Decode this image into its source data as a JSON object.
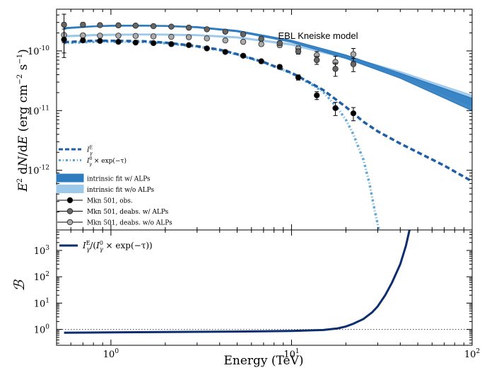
{
  "chart_data": [
    {
      "type": "scatter",
      "annotation": "EBL Kneiske model",
      "ylabel": "E^2 dN/dE (erg cm^-2 s^-1)",
      "xscale": "log",
      "yscale": "log",
      "xlim": [
        0.5,
        100
      ],
      "ylim": [
        1e-13,
        5e-10
      ],
      "y_tick_labels": [
        "10^{-12}",
        "10^{-11}",
        "10^{-10}"
      ],
      "legend_position": "lower-left",
      "legend": [
        {
          "label": "I_γ^E",
          "style": "dashed",
          "color": "#1f5fa6"
        },
        {
          "label": "I_γ^0 × exp(−τ)",
          "style": "dashdot",
          "color": "#5ba7d9"
        },
        {
          "label": "intrinsic fit w/ ALPs",
          "style": "band",
          "color": "#2e7cc0"
        },
        {
          "label": "intrinsic fit w/o ALPs",
          "style": "band",
          "color": "#9cc8ea"
        },
        {
          "label": "Mkn 501, obs.",
          "style": "marker",
          "color": "#000000"
        },
        {
          "label": "Mkn 501, deabs. w/ ALPs",
          "style": "marker",
          "color": "#666666"
        },
        {
          "label": "Mkn 501, deabs. w/o ALPs",
          "style": "marker",
          "color": "#aaaaaa"
        }
      ],
      "series": [
        {
          "name": "Mkn 501, obs.",
          "color": "#000000",
          "x": [
            0.55,
            0.7,
            0.87,
            1.1,
            1.37,
            1.72,
            2.16,
            2.7,
            3.4,
            4.3,
            5.4,
            6.8,
            8.6,
            10.9,
            13.8,
            17.5,
            22.0
          ],
          "y": [
            1.55e-10,
            1.5e-10,
            1.47e-10,
            1.42e-10,
            1.38e-10,
            1.35e-10,
            1.3e-10,
            1.25e-10,
            1.1e-10,
            9.6e-11,
            8.3e-11,
            6.7e-11,
            5.4e-11,
            3.6e-11,
            1.8e-11,
            1.1e-11,
            9e-12
          ],
          "yerr_rel": [
            0.5,
            0.08,
            0.05,
            0.05,
            0.05,
            0.05,
            0.05,
            0.05,
            0.05,
            0.06,
            0.06,
            0.07,
            0.08,
            0.1,
            0.15,
            0.25,
            0.25
          ]
        },
        {
          "name": "Mkn 501, deabs. w/ ALPs",
          "color": "#666666",
          "x": [
            0.55,
            0.7,
            0.87,
            1.1,
            1.37,
            1.72,
            2.16,
            2.7,
            3.4,
            4.3,
            5.4,
            6.8,
            8.6,
            10.9,
            13.8,
            17.5,
            22.0
          ],
          "y": [
            2.75e-10,
            2.75e-10,
            2.7e-10,
            2.68e-10,
            2.65e-10,
            2.6e-10,
            2.55e-10,
            2.45e-10,
            2.3e-10,
            2.1e-10,
            1.9e-10,
            1.6e-10,
            1.35e-10,
            9.8e-11,
            7e-11,
            5e-11,
            6e-11
          ],
          "yerr_rel": [
            0.5,
            0.08,
            0.05,
            0.05,
            0.05,
            0.05,
            0.05,
            0.05,
            0.05,
            0.06,
            0.06,
            0.07,
            0.08,
            0.1,
            0.15,
            0.25,
            0.25
          ]
        },
        {
          "name": "Mkn 501, deabs. w/o ALPs",
          "color": "#aaaaaa",
          "x": [
            0.55,
            0.7,
            0.87,
            1.1,
            1.37,
            1.72,
            2.16,
            2.7,
            3.4,
            4.3,
            5.4,
            6.8,
            8.6,
            10.9,
            13.8,
            17.5,
            22.0
          ],
          "y": [
            1.85e-10,
            1.82e-10,
            1.8e-10,
            1.8e-10,
            1.78e-10,
            1.75e-10,
            1.72e-10,
            1.7e-10,
            1.62e-10,
            1.5e-10,
            1.42e-10,
            1.3e-10,
            1.25e-10,
            1.1e-10,
            8.5e-11,
            6.5e-11,
            8.8e-11
          ],
          "yerr_rel": [
            0.5,
            0.08,
            0.05,
            0.05,
            0.05,
            0.05,
            0.05,
            0.05,
            0.05,
            0.06,
            0.06,
            0.07,
            0.08,
            0.1,
            0.15,
            0.25,
            0.25
          ]
        },
        {
          "name": "intrinsic fit w/ ALPs",
          "color": "#2e7cc0",
          "x": [
            0.55,
            0.8,
            1.0,
            1.5,
            2.0,
            3.0,
            5.0,
            10.0,
            20.0,
            40.0,
            100.0
          ],
          "y_low": [
            2.35e-10,
            2.55e-10,
            2.6e-10,
            2.62e-10,
            2.58e-10,
            2.45e-10,
            2.1e-10,
            1.4e-10,
            7.5e-11,
            3.5e-11,
            1e-11
          ],
          "y_high": [
            2.45e-10,
            2.62e-10,
            2.68e-10,
            2.7e-10,
            2.66e-10,
            2.55e-10,
            2.2e-10,
            1.5e-10,
            8.5e-11,
            4.2e-11,
            1.6e-11
          ]
        },
        {
          "name": "intrinsic fit w/o ALPs",
          "color": "#9cc8ea",
          "x": [
            0.55,
            0.8,
            1.0,
            1.5,
            2.0,
            3.0,
            5.0,
            10.0,
            20.0,
            40.0,
            100.0
          ],
          "y_low": [
            1.72e-10,
            1.8e-10,
            1.82e-10,
            1.85e-10,
            1.84e-10,
            1.8e-10,
            1.65e-10,
            1.25e-10,
            7.5e-11,
            3.8e-11,
            1.2e-11
          ],
          "y_high": [
            1.8e-10,
            1.88e-10,
            1.9e-10,
            1.92e-10,
            1.91e-10,
            1.87e-10,
            1.72e-10,
            1.32e-10,
            8.2e-11,
            4.5e-11,
            1.8e-11
          ]
        },
        {
          "name": "I_γ^E",
          "color": "#1f5fa6",
          "x": [
            0.55,
            0.8,
            1.0,
            1.5,
            2.0,
            3.0,
            4.0,
            5.0,
            7.0,
            10.0,
            13.0,
            15.0,
            20.0,
            25.0,
            30.0,
            40.0,
            50.0,
            70.0,
            100.0
          ],
          "y": [
            1.4e-10,
            1.48e-10,
            1.48e-10,
            1.45e-10,
            1.38e-10,
            1.2e-10,
            1.05e-10,
            8.8e-11,
            6.5e-11,
            4.3e-11,
            2.8e-11,
            2.2e-11,
            1.15e-11,
            6.5e-12,
            4.5e-12,
            2.8e-12,
            2e-12,
            1.2e-12,
            6.5e-13
          ]
        },
        {
          "name": "I_γ^0 × exp(−τ)",
          "color": "#5ba7d9",
          "x": [
            0.55,
            0.8,
            1.0,
            1.5,
            2.0,
            3.0,
            4.0,
            5.0,
            7.0,
            10.0,
            13.0,
            15.0,
            18.0,
            20.0,
            22.0,
            25.0,
            27.0,
            29.0,
            30.5
          ],
          "y": [
            1.35e-10,
            1.42e-10,
            1.43e-10,
            1.41e-10,
            1.35e-10,
            1.18e-10,
            1.03e-10,
            8.7e-11,
            6.4e-11,
            4.2e-11,
            2.7e-11,
            2.05e-11,
            1.1e-11,
            7e-12,
            4e-12,
            1.5e-12,
            6e-13,
            2e-13,
            1e-13
          ]
        }
      ]
    },
    {
      "type": "line",
      "xlabel": "Energy (TeV)",
      "ylabel": "ℬ",
      "xscale": "log",
      "yscale": "log",
      "xlim": [
        0.5,
        100
      ],
      "ylim": [
        0.25,
        6000
      ],
      "x_tick_labels": [
        "10^0",
        "10^1",
        "10^2"
      ],
      "y_tick_labels": [
        "10^0",
        "10^1",
        "10^2",
        "10^3"
      ],
      "reference_line": {
        "y": 1.0,
        "style": "dotted"
      },
      "series": [
        {
          "name": "I_γ^E/(I_γ^0 × exp(−τ))",
          "color": "#0d2e6e",
          "x": [
            0.55,
            1.0,
            2.0,
            5.0,
            10.0,
            15.0,
            18.0,
            20.0,
            22.0,
            25.0,
            28.0,
            30.0,
            33.0,
            36.0,
            40.0,
            43.0,
            45.0
          ],
          "y": [
            0.75,
            0.77,
            0.8,
            0.83,
            0.87,
            0.95,
            1.1,
            1.3,
            1.65,
            2.5,
            4.5,
            7.5,
            20,
            60,
            300,
            1500,
            6000
          ]
        }
      ]
    }
  ]
}
